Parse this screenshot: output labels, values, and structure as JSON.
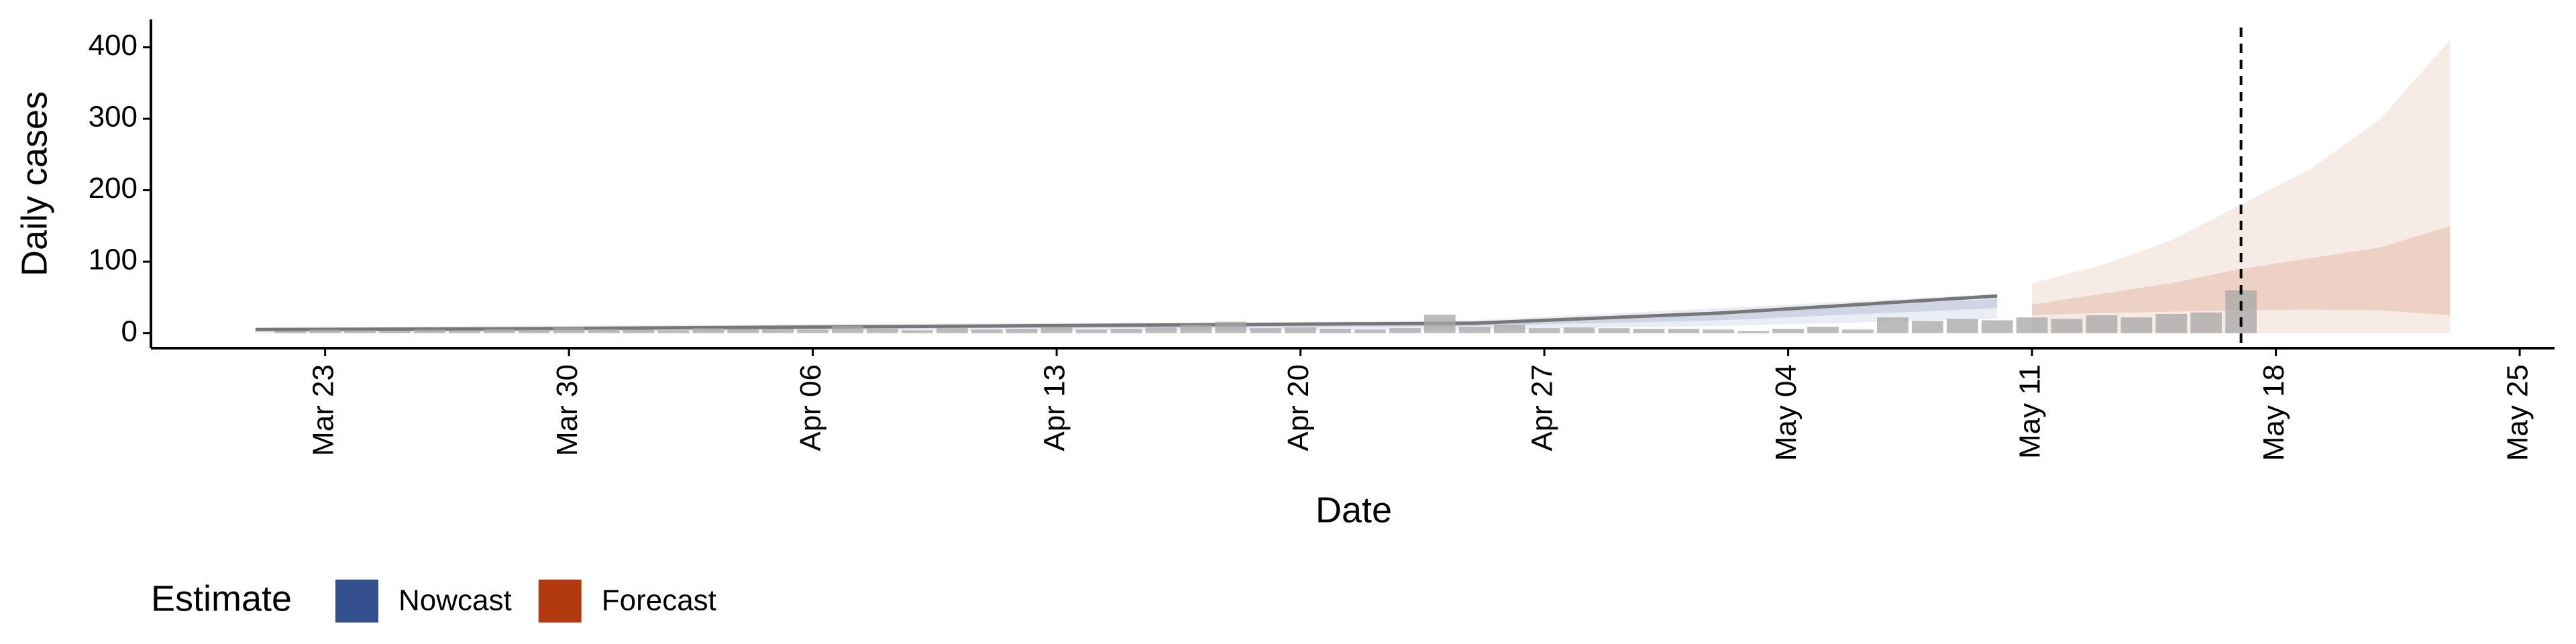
{
  "chart_data": {
    "type": "bar",
    "xlabel": "Date",
    "ylabel": "Daily cases",
    "legend_title": "Estimate",
    "bar_color": "#a6a6a6",
    "x": [
      "Mar 22",
      "Mar 23",
      "Mar 24",
      "Mar 25",
      "Mar 26",
      "Mar 27",
      "Mar 28",
      "Mar 29",
      "Mar 30",
      "Mar 31",
      "Apr 01",
      "Apr 02",
      "Apr 03",
      "Apr 04",
      "Apr 05",
      "Apr 06",
      "Apr 07",
      "Apr 08",
      "Apr 09",
      "Apr 10",
      "Apr 11",
      "Apr 12",
      "Apr 13",
      "Apr 14",
      "Apr 15",
      "Apr 16",
      "Apr 17",
      "Apr 18",
      "Apr 19",
      "Apr 20",
      "Apr 21",
      "Apr 22",
      "Apr 23",
      "Apr 24",
      "Apr 25",
      "Apr 26",
      "Apr 27",
      "Apr 28",
      "Apr 29",
      "Apr 30",
      "May 01",
      "May 02",
      "May 03",
      "May 04",
      "May 05",
      "May 06",
      "May 07",
      "May 08",
      "May 09",
      "May 10",
      "May 11",
      "May 12",
      "May 13",
      "May 14",
      "May 15",
      "May 16",
      "May 17"
    ],
    "values": [
      3,
      5,
      4,
      3,
      5,
      4,
      6,
      5,
      8,
      6,
      5,
      4,
      7,
      6,
      6,
      5,
      10,
      6,
      4,
      7,
      5,
      6,
      9,
      5,
      6,
      8,
      12,
      16,
      7,
      8,
      6,
      5,
      7,
      26,
      9,
      12,
      7,
      8,
      7,
      6,
      6,
      5,
      3,
      6,
      9,
      5,
      22,
      17,
      20,
      18,
      22,
      20,
      25,
      22,
      27,
      29,
      60
    ],
    "series": [
      {
        "name": "Nowcast",
        "color": "#35508f",
        "x": [
          "Mar 21",
          "Mar 28",
          "Apr 04",
          "Apr 11",
          "Apr 18",
          "Apr 25",
          "May 02",
          "May 10"
        ],
        "values": [
          5,
          6,
          8,
          10,
          12,
          14,
          28,
          52
        ],
        "lower": [
          0,
          1,
          2,
          3,
          4,
          5,
          10,
          20
        ],
        "upper": [
          8,
          10,
          12,
          14,
          15,
          18,
          35,
          55
        ],
        "lower_50": [
          3,
          4,
          5,
          7,
          8,
          10,
          18,
          35
        ],
        "upper_50": [
          6,
          8,
          10,
          12,
          13,
          16,
          30,
          48
        ]
      },
      {
        "name": "Forecast",
        "color": "#b33a0e",
        "x": [
          "May 11",
          "May 13",
          "May 15",
          "May 17",
          "May 19",
          "May 21",
          "May 23"
        ],
        "lower": [
          0,
          0,
          0,
          0,
          0,
          0,
          0
        ],
        "upper": [
          70,
          95,
          130,
          180,
          230,
          300,
          410
        ],
        "lower_50": [
          25,
          28,
          30,
          32,
          33,
          32,
          25
        ],
        "upper_50": [
          40,
          55,
          70,
          90,
          105,
          120,
          150
        ]
      }
    ],
    "vline": "May 17",
    "xlim": [
      "Mar 18",
      "May 26"
    ],
    "xticks": [
      "Mar 23",
      "Mar 30",
      "Apr 06",
      "Apr 13",
      "Apr 20",
      "Apr 27",
      "May 04",
      "May 11",
      "May 18",
      "May 25"
    ],
    "ylim": [
      -21,
      439
    ],
    "yticks": [
      0,
      100,
      200,
      300,
      400
    ]
  }
}
